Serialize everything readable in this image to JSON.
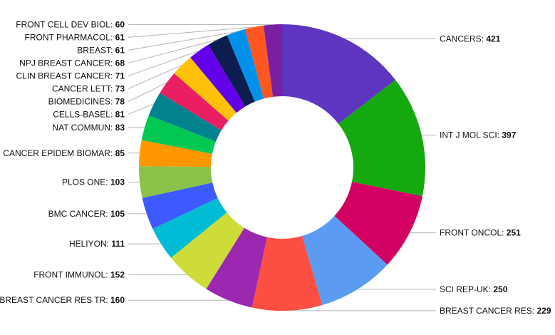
{
  "chart_data": {
    "type": "pie",
    "donut": true,
    "legend": "none",
    "categories": [
      "CANCERS",
      "INT J MOL SCI",
      "FRONT ONCOL",
      "SCI REP-UK",
      "BREAST CANCER RES",
      "BREAST CANCER RES TR",
      "FRONT IMMUNOL",
      "HELIYON",
      "BMC CANCER",
      "PLOS ONE",
      "CANCER EPIDEM BIOMAR",
      "NAT COMMUN",
      "CELLS-BASEL",
      "BIOMEDICINES",
      "CANCER LETT",
      "CLIN BREAST CANCER",
      "NPJ BREAST CANCER",
      "BREAST",
      "FRONT PHARMACOL",
      "FRONT CELL DEV BIOL"
    ],
    "values": [
      421,
      397,
      251,
      250,
      229,
      160,
      152,
      111,
      105,
      103,
      85,
      83,
      81,
      78,
      73,
      71,
      68,
      61,
      61,
      60
    ],
    "colors": [
      "#5e35c1",
      "#14a90e",
      "#d20061",
      "#5b9bf2",
      "#fc4f41",
      "#9c27b0",
      "#cddc39",
      "#00bcd4",
      "#3d5afe",
      "#8bc34a",
      "#ff9800",
      "#00c853",
      "#00838f",
      "#e91e63",
      "#ffc107",
      "#6200ea",
      "#0d1d4f",
      "#0091ea",
      "#ff5722",
      "#7b1fa2"
    ]
  }
}
